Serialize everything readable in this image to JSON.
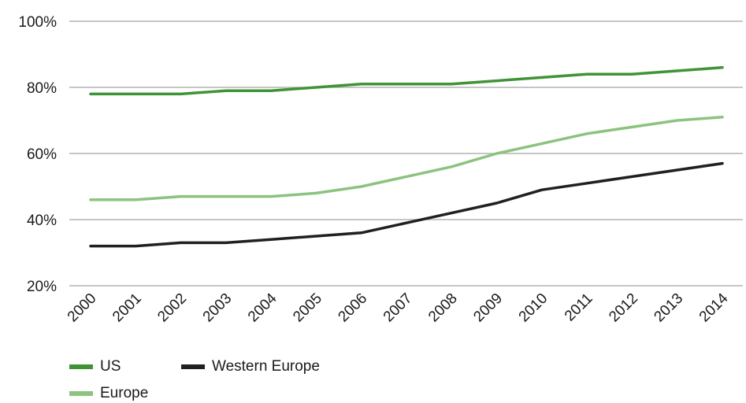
{
  "chart_data": {
    "type": "line",
    "title": "",
    "xlabel": "",
    "ylabel": "",
    "x": [
      "2000",
      "2001",
      "2002",
      "2003",
      "2004",
      "2005",
      "2006",
      "2007",
      "2008",
      "2009",
      "2010",
      "2011",
      "2012",
      "2013",
      "2014"
    ],
    "ylim": [
      20,
      100
    ],
    "yticks": [
      20,
      40,
      60,
      80,
      100
    ],
    "ytick_labels": [
      "20%",
      "40%",
      "60%",
      "80%",
      "100%"
    ],
    "grid": true,
    "legend_position": "bottom-left",
    "series": [
      {
        "name": "US",
        "color": "#3f9436",
        "values": [
          78,
          78,
          78,
          79,
          79,
          80,
          81,
          81,
          81,
          82,
          83,
          84,
          84,
          85,
          86
        ]
      },
      {
        "name": "Western Europe",
        "color": "#231f20",
        "values": [
          32,
          32,
          33,
          33,
          34,
          35,
          36,
          39,
          42,
          45,
          49,
          51,
          53,
          55,
          57
        ]
      },
      {
        "name": "Europe",
        "color": "#8cc37e",
        "values": [
          46,
          46,
          47,
          47,
          47,
          48,
          50,
          53,
          56,
          60,
          63,
          66,
          68,
          70,
          71
        ]
      }
    ]
  }
}
